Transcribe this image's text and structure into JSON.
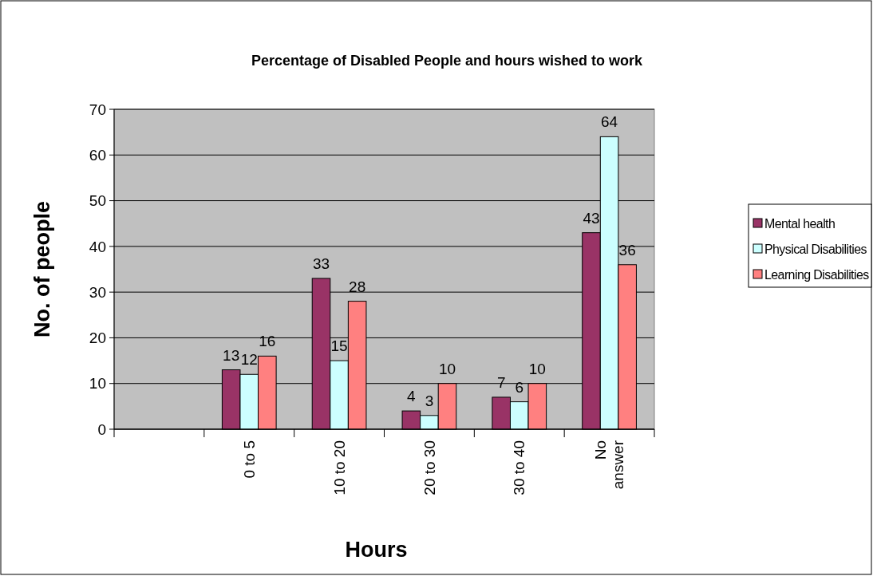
{
  "chart_data": {
    "type": "bar",
    "title": "Percentage of Disabled People and hours wished to work",
    "xlabel": "Hours",
    "ylabel": "No. of people",
    "categories": [
      null,
      "0 to 5",
      "10 to 20",
      "20 to 30",
      "30 to 40",
      "No answer"
    ],
    "series": [
      {
        "name": "Mental health",
        "color": "#993366",
        "values": [
          null,
          13,
          33,
          4,
          7,
          43
        ]
      },
      {
        "name": "Physical Disabilities",
        "color": "#ccffff",
        "values": [
          null,
          12,
          15,
          3,
          6,
          64
        ]
      },
      {
        "name": "Learning Disabilities",
        "color": "#ff8080",
        "values": [
          null,
          16,
          28,
          10,
          10,
          36
        ]
      }
    ],
    "ylim": [
      0,
      70
    ],
    "yticks": [
      0,
      10,
      20,
      30,
      40,
      50,
      60,
      70
    ],
    "grid": "y",
    "legend": "right",
    "data_labels": true
  }
}
